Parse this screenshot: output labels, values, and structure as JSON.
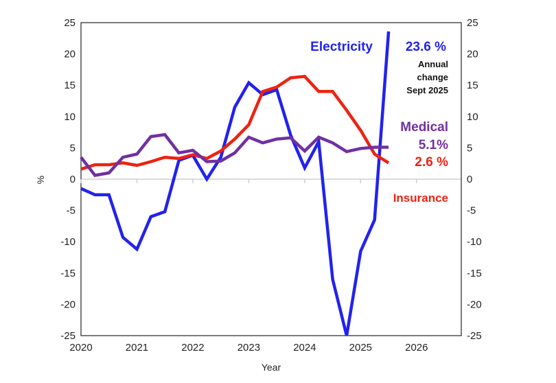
{
  "chart_data": {
    "type": "line",
    "title": "",
    "xlabel": "Year",
    "ylabel": "%",
    "xlim": [
      2020,
      2026.8
    ],
    "ylim": [
      -25,
      25
    ],
    "yticks": [
      -25,
      -20,
      -15,
      -10,
      -5,
      0,
      5,
      10,
      15,
      20,
      25
    ],
    "xticks": [
      2020,
      2021,
      2022,
      2023,
      2024,
      2025,
      2026
    ],
    "secondary_y_axis": true,
    "grid": false,
    "x": [
      2020.0,
      2020.25,
      2020.5,
      2020.75,
      2021.0,
      2021.25,
      2021.5,
      2021.75,
      2022.0,
      2022.25,
      2022.5,
      2022.75,
      2023.0,
      2023.25,
      2023.5,
      2023.75,
      2024.0,
      2024.25,
      2024.5,
      2024.75,
      2025.0,
      2025.25,
      2025.5
    ],
    "series": [
      {
        "name": "Electricity",
        "color": "#2222ee",
        "values": [
          -1.5,
          -2.5,
          -2.5,
          -9.3,
          -11.2,
          -6.0,
          -5.2,
          3.0,
          3.8,
          0.0,
          3.5,
          11.5,
          15.4,
          13.5,
          14.3,
          7.0,
          1.8,
          6.0,
          -16.0,
          -25.0,
          -11.5,
          -6.5,
          23.6
        ]
      },
      {
        "name": "Insurance",
        "color": "#ee2211",
        "values": [
          1.6,
          2.3,
          2.3,
          2.6,
          2.2,
          2.8,
          3.5,
          3.3,
          3.9,
          3.3,
          4.5,
          6.4,
          8.7,
          14.0,
          14.7,
          16.2,
          16.4,
          14.0,
          14.0,
          11.0,
          7.8,
          4.0,
          2.6
        ]
      },
      {
        "name": "Medical",
        "color": "#7030a0",
        "values": [
          3.5,
          0.6,
          1.0,
          3.5,
          4.0,
          6.8,
          7.1,
          4.2,
          4.6,
          2.8,
          2.9,
          4.2,
          6.7,
          5.8,
          6.4,
          6.6,
          4.5,
          6.7,
          5.8,
          4.4,
          4.9,
          5.1,
          5.1
        ]
      }
    ],
    "annotations": {
      "electricity_label": "Electricity",
      "electricity_value": "23.6 %",
      "note_line1": "Annual",
      "note_line2": "change",
      "note_line3": "Sept  2025",
      "medical_label": "Medical",
      "medical_value": "5.1%",
      "insurance_value": "2.6 %",
      "insurance_label": "Insurance"
    }
  }
}
